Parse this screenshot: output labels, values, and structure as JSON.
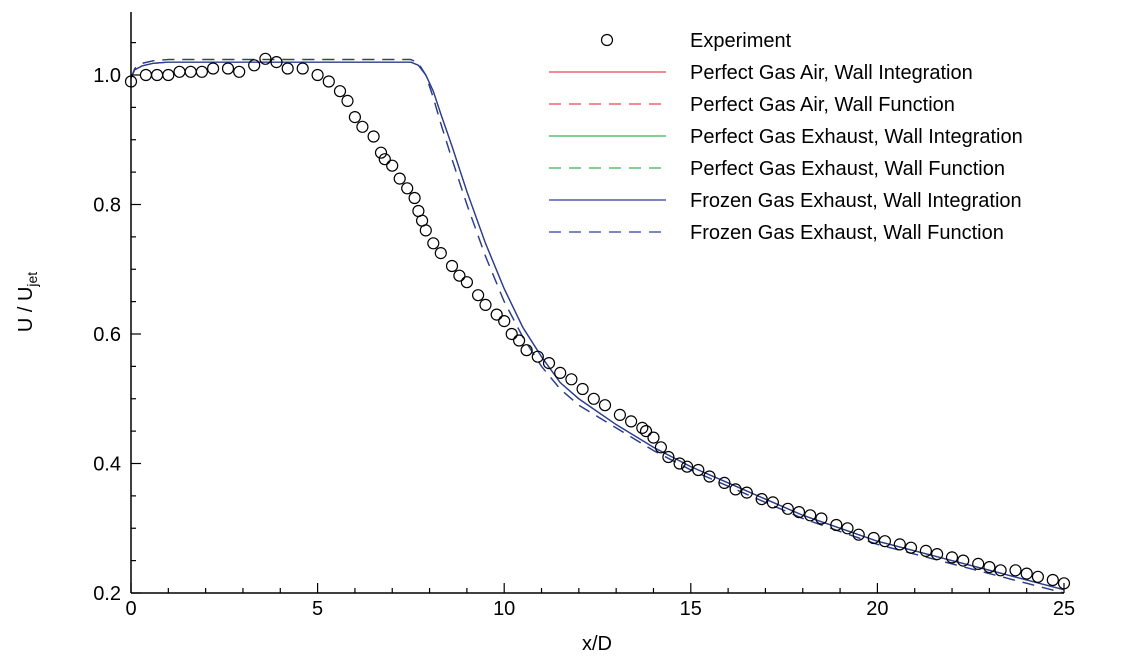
{
  "chart_data": {
    "type": "line",
    "xlabel": "x/D",
    "ylabel_main": "U / U",
    "ylabel_sub": "jet",
    "xlim": [
      0,
      25
    ],
    "ylim": [
      0.2,
      1.1
    ],
    "xticks": [
      "0",
      "5",
      "10",
      "15",
      "20",
      "25"
    ],
    "yticks": [
      "0.2",
      "0.4",
      "0.6",
      "0.8",
      "1.0"
    ],
    "grid": false,
    "legend_position": "top-right",
    "series": [
      {
        "name": "Experiment",
        "kind": "scatter",
        "color": "#000000",
        "x": [
          0.0,
          0.4,
          0.7,
          1.0,
          1.3,
          1.6,
          1.9,
          2.2,
          2.6,
          2.9,
          3.3,
          3.6,
          3.9,
          4.2,
          4.6,
          5.0,
          5.3,
          5.6,
          5.8,
          6.0,
          6.2,
          6.5,
          6.7,
          6.8,
          7.0,
          7.2,
          7.4,
          7.6,
          7.7,
          7.8,
          7.9,
          8.1,
          8.3,
          8.6,
          8.8,
          9.0,
          9.3,
          9.5,
          9.8,
          10.0,
          10.2,
          10.4,
          10.6,
          10.9,
          11.2,
          11.5,
          11.8,
          12.1,
          12.4,
          12.7,
          13.1,
          13.4,
          13.7,
          13.8,
          14.0,
          14.2,
          14.4,
          14.7,
          14.9,
          15.2,
          15.5,
          15.9,
          16.2,
          16.5,
          16.9,
          17.2,
          17.6,
          17.9,
          18.2,
          18.5,
          18.9,
          19.2,
          19.5,
          19.9,
          20.2,
          20.6,
          20.9,
          21.3,
          21.6,
          22.0,
          22.3,
          22.7,
          23.0,
          23.3,
          23.7,
          24.0,
          24.3,
          24.7,
          25.0
        ],
        "y": [
          0.99,
          1.0,
          1.0,
          1.0,
          1.005,
          1.005,
          1.005,
          1.01,
          1.01,
          1.005,
          1.015,
          1.025,
          1.02,
          1.01,
          1.01,
          1.0,
          0.99,
          0.975,
          0.96,
          0.935,
          0.92,
          0.905,
          0.88,
          0.87,
          0.86,
          0.84,
          0.825,
          0.81,
          0.79,
          0.775,
          0.76,
          0.74,
          0.725,
          0.705,
          0.69,
          0.68,
          0.66,
          0.645,
          0.63,
          0.62,
          0.6,
          0.59,
          0.575,
          0.565,
          0.555,
          0.54,
          0.53,
          0.515,
          0.5,
          0.49,
          0.475,
          0.465,
          0.455,
          0.45,
          0.44,
          0.425,
          0.41,
          0.4,
          0.395,
          0.39,
          0.38,
          0.37,
          0.36,
          0.355,
          0.345,
          0.34,
          0.33,
          0.325,
          0.32,
          0.315,
          0.305,
          0.3,
          0.29,
          0.285,
          0.28,
          0.275,
          0.27,
          0.265,
          0.26,
          0.255,
          0.25,
          0.245,
          0.24,
          0.235,
          0.235,
          0.23,
          0.225,
          0.22,
          0.215
        ]
      },
      {
        "name": "Perfect Gas Air, Wall Integration",
        "kind": "line",
        "dash": "solid",
        "color": "#e8484c",
        "x": [
          0,
          0.1,
          0.3,
          0.6,
          1,
          2,
          3,
          4,
          5,
          6,
          7,
          7.5,
          7.7,
          7.9,
          8.1,
          8.3,
          8.6,
          9,
          9.5,
          10,
          10.5,
          11,
          11.5,
          12,
          13,
          14,
          15,
          16,
          17,
          18,
          19,
          20,
          21,
          22,
          23,
          24,
          25
        ],
        "y": [
          0.995,
          1.008,
          1.014,
          1.018,
          1.02,
          1.02,
          1.02,
          1.02,
          1.02,
          1.02,
          1.02,
          1.02,
          1.015,
          1.0,
          0.975,
          0.94,
          0.89,
          0.82,
          0.74,
          0.67,
          0.61,
          0.565,
          0.525,
          0.5,
          0.46,
          0.425,
          0.395,
          0.37,
          0.345,
          0.32,
          0.3,
          0.28,
          0.265,
          0.25,
          0.235,
          0.22,
          0.205
        ]
      },
      {
        "name": "Perfect Gas Air, Wall Function",
        "kind": "line",
        "dash": "dashed",
        "color": "#e8484c",
        "x": [
          0,
          0.1,
          0.3,
          0.6,
          1,
          2,
          3,
          4,
          5,
          6,
          7,
          7.5,
          7.7,
          7.9,
          8.1,
          8.3,
          8.6,
          9,
          9.5,
          10,
          10.5,
          11,
          11.5,
          12,
          13,
          14,
          15,
          16,
          17,
          18,
          19,
          20,
          21,
          22,
          23,
          24,
          25
        ],
        "y": [
          0.995,
          1.01,
          1.018,
          1.022,
          1.024,
          1.024,
          1.024,
          1.024,
          1.024,
          1.024,
          1.024,
          1.024,
          1.018,
          1.0,
          0.965,
          0.925,
          0.87,
          0.8,
          0.72,
          0.65,
          0.595,
          0.55,
          0.515,
          0.49,
          0.455,
          0.42,
          0.39,
          0.365,
          0.34,
          0.315,
          0.295,
          0.275,
          0.26,
          0.245,
          0.23,
          0.215,
          0.2
        ]
      },
      {
        "name": "Perfect Gas Exhaust, Wall Integration",
        "kind": "line",
        "dash": "solid",
        "color": "#3ab54a",
        "x": [
          0,
          0.1,
          0.3,
          0.6,
          1,
          2,
          3,
          4,
          5,
          6,
          7,
          7.5,
          7.7,
          7.9,
          8.1,
          8.3,
          8.6,
          9,
          9.5,
          10,
          10.5,
          11,
          11.5,
          12,
          13,
          14,
          15,
          16,
          17,
          18,
          19,
          20,
          21,
          22,
          23,
          24,
          25
        ],
        "y": [
          0.995,
          1.008,
          1.014,
          1.018,
          1.02,
          1.02,
          1.02,
          1.02,
          1.02,
          1.02,
          1.02,
          1.02,
          1.015,
          1.0,
          0.975,
          0.94,
          0.89,
          0.82,
          0.74,
          0.67,
          0.61,
          0.565,
          0.525,
          0.5,
          0.46,
          0.425,
          0.395,
          0.37,
          0.345,
          0.32,
          0.3,
          0.28,
          0.265,
          0.25,
          0.235,
          0.22,
          0.205
        ]
      },
      {
        "name": "Perfect Gas Exhaust, Wall Function",
        "kind": "line",
        "dash": "dashed",
        "color": "#3ab54a",
        "x": [
          0,
          0.1,
          0.3,
          0.6,
          1,
          2,
          3,
          4,
          5,
          6,
          7,
          7.5,
          7.7,
          7.9,
          8.1,
          8.3,
          8.6,
          9,
          9.5,
          10,
          10.5,
          11,
          11.5,
          12,
          13,
          14,
          15,
          16,
          17,
          18,
          19,
          20,
          21,
          22,
          23,
          24,
          25
        ],
        "y": [
          0.995,
          1.01,
          1.018,
          1.022,
          1.024,
          1.024,
          1.024,
          1.024,
          1.024,
          1.024,
          1.024,
          1.024,
          1.018,
          1.0,
          0.965,
          0.925,
          0.87,
          0.8,
          0.72,
          0.65,
          0.595,
          0.55,
          0.515,
          0.49,
          0.455,
          0.42,
          0.39,
          0.365,
          0.34,
          0.315,
          0.295,
          0.275,
          0.26,
          0.245,
          0.23,
          0.215,
          0.2
        ]
      },
      {
        "name": "Frozen Gas Exhaust, Wall Integration",
        "kind": "line",
        "dash": "solid",
        "color": "#2d3a9c",
        "x": [
          0,
          0.1,
          0.3,
          0.6,
          1,
          2,
          3,
          4,
          5,
          6,
          7,
          7.5,
          7.7,
          7.9,
          8.1,
          8.3,
          8.6,
          9,
          9.5,
          10,
          10.5,
          11,
          11.5,
          12,
          13,
          14,
          15,
          16,
          17,
          18,
          19,
          20,
          21,
          22,
          23,
          24,
          25
        ],
        "y": [
          0.995,
          1.008,
          1.014,
          1.018,
          1.02,
          1.02,
          1.02,
          1.02,
          1.02,
          1.02,
          1.02,
          1.02,
          1.015,
          1.0,
          0.975,
          0.94,
          0.89,
          0.82,
          0.74,
          0.67,
          0.61,
          0.565,
          0.525,
          0.5,
          0.46,
          0.425,
          0.395,
          0.37,
          0.345,
          0.32,
          0.3,
          0.28,
          0.265,
          0.25,
          0.235,
          0.22,
          0.205
        ]
      },
      {
        "name": "Frozen Gas Exhaust, Wall Function",
        "kind": "line",
        "dash": "dashed",
        "color": "#2d3a9c",
        "x": [
          0,
          0.1,
          0.3,
          0.6,
          1,
          2,
          3,
          4,
          5,
          6,
          7,
          7.5,
          7.7,
          7.9,
          8.1,
          8.3,
          8.6,
          9,
          9.5,
          10,
          10.5,
          11,
          11.5,
          12,
          13,
          14,
          15,
          16,
          17,
          18,
          19,
          20,
          21,
          22,
          23,
          24,
          25
        ],
        "y": [
          0.995,
          1.01,
          1.018,
          1.022,
          1.024,
          1.024,
          1.024,
          1.024,
          1.024,
          1.024,
          1.024,
          1.024,
          1.018,
          1.0,
          0.965,
          0.925,
          0.87,
          0.8,
          0.72,
          0.65,
          0.595,
          0.55,
          0.515,
          0.49,
          0.455,
          0.42,
          0.39,
          0.365,
          0.34,
          0.315,
          0.295,
          0.275,
          0.26,
          0.245,
          0.23,
          0.215,
          0.2
        ]
      }
    ]
  }
}
